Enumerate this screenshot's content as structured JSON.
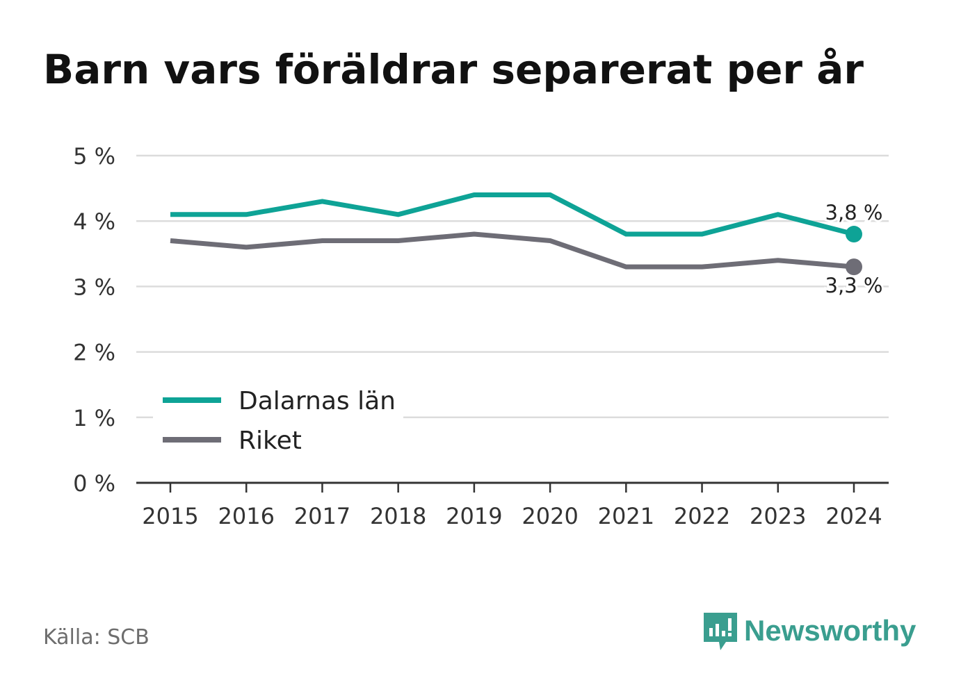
{
  "title": "Barn vars föräldrar separerat per år",
  "source": "Källa: SCB",
  "brand": {
    "name": "Newsworthy",
    "icon": "newsworthy-logo-icon",
    "color": "#3a9e8f"
  },
  "chart_data": {
    "type": "line",
    "title": "Barn vars föräldrar separerat per år",
    "x": [
      "2015",
      "2016",
      "2017",
      "2018",
      "2019",
      "2020",
      "2021",
      "2022",
      "2023",
      "2024"
    ],
    "y_ticks": [
      "0 %",
      "1 %",
      "2 %",
      "3 %",
      "4 %",
      "5 %"
    ],
    "ylim": [
      0,
      5
    ],
    "grid": true,
    "legend_placement": "bottom-left",
    "series": [
      {
        "name": "Dalarnas län",
        "color": "#0ea396",
        "values": [
          4.1,
          4.1,
          4.3,
          4.1,
          4.4,
          4.4,
          3.8,
          3.8,
          4.1,
          3.8
        ],
        "end_label": "3,8 %"
      },
      {
        "name": "Riket",
        "color": "#6e6d76",
        "values": [
          3.7,
          3.6,
          3.7,
          3.7,
          3.8,
          3.7,
          3.3,
          3.3,
          3.4,
          3.3
        ],
        "end_label": "3,3 %"
      }
    ]
  }
}
